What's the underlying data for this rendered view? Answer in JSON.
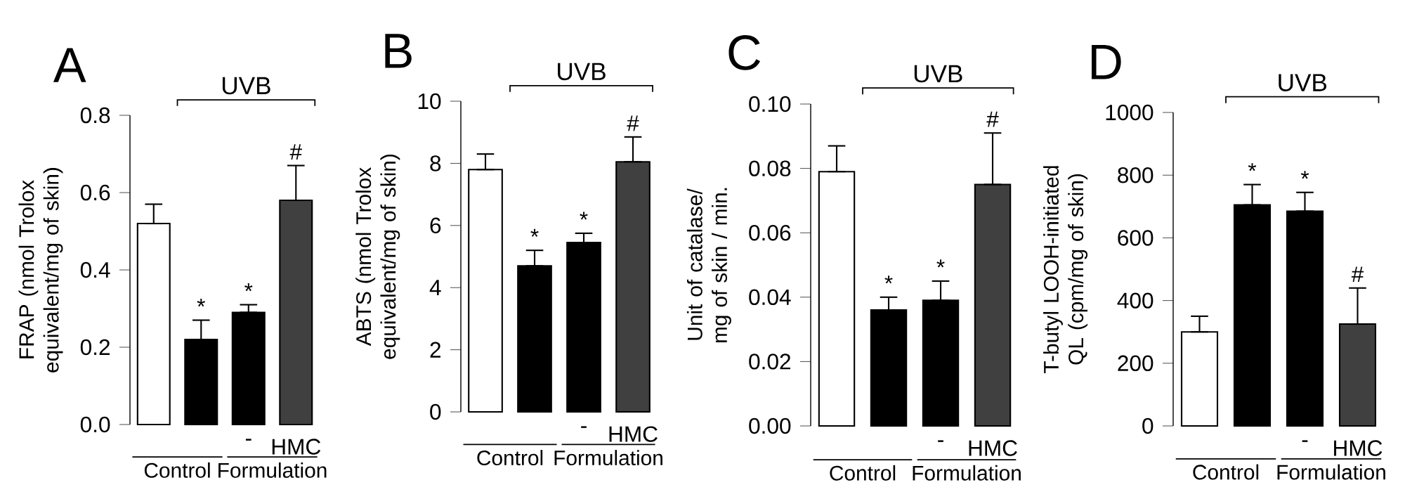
{
  "chart_data": [
    {
      "type": "bar",
      "title": "A",
      "ylabel": "FRAP (nmol Trolox equivalent/mg of skin)",
      "categories": [
        null,
        null,
        "-",
        "HMC"
      ],
      "values": [
        0.52,
        0.22,
        0.29,
        0.58
      ],
      "errors": [
        [
          0.52,
          0.57
        ],
        [
          0.22,
          0.27
        ],
        [
          0.29,
          0.31
        ],
        [
          0.58,
          0.67
        ]
      ],
      "colors": [
        "#ffffff",
        "#000000",
        "#000000",
        "#404040"
      ],
      "value_labels": [
        null,
        "*",
        "*",
        "#"
      ],
      "ylim": [
        0,
        0.8
      ],
      "yticks": [
        {
          "value": 0,
          "label": "0.0"
        },
        0.2,
        0.4,
        0.6,
        0.8
      ],
      "annotations": [
        "UVB",
        "Control",
        "Formulation"
      ]
    },
    {
      "type": "bar",
      "title": "B",
      "ylabel": "ABTS (nmol Trolox equivalent/mg of skin)",
      "categories": [
        null,
        null,
        "-",
        "HMC"
      ],
      "values": [
        7.8,
        4.7,
        5.45,
        8.05
      ],
      "errors": [
        [
          7.8,
          8.3
        ],
        [
          4.7,
          5.2
        ],
        [
          5.45,
          5.75
        ],
        [
          8.05,
          8.85
        ]
      ],
      "colors": [
        "#ffffff",
        "#000000",
        "#000000",
        "#404040"
      ],
      "value_labels": [
        null,
        "*",
        "*",
        "#"
      ],
      "ylim": [
        0,
        10
      ],
      "yticks": [
        0,
        2,
        4,
        6,
        8,
        10
      ],
      "annotations": [
        "UVB",
        "Control",
        "Formulation"
      ]
    },
    {
      "type": "bar",
      "title": "C",
      "ylabel": "Unit of catalase/ mg of skin / min.",
      "categories": [
        null,
        null,
        "-",
        "HMC"
      ],
      "values": [
        0.079,
        0.036,
        0.039,
        0.075
      ],
      "errors": [
        [
          0.079,
          0.087
        ],
        [
          0.036,
          0.04
        ],
        [
          0.039,
          0.045
        ],
        [
          0.075,
          0.091
        ]
      ],
      "colors": [
        "#ffffff",
        "#000000",
        "#000000",
        "#404040"
      ],
      "value_labels": [
        null,
        "*",
        "*",
        "#"
      ],
      "ylim": [
        0,
        0.1
      ],
      "yticks": [
        {
          "value": 0,
          "label": "0.00"
        },
        {
          "value": 0.02,
          "label": "0.02"
        },
        {
          "value": 0.04,
          "label": "0.04"
        },
        {
          "value": 0.06,
          "label": "0.06"
        },
        {
          "value": 0.08,
          "label": "0.08"
        },
        {
          "value": 0.1,
          "label": "0.10"
        }
      ],
      "annotations": [
        "UVB",
        "Control",
        "Formulation"
      ]
    },
    {
      "type": "bar",
      "title": "D",
      "ylabel": "T-butyl LOOH-initiated QL (cpm/mg of skin)",
      "categories": [
        null,
        null,
        "-",
        "HMC"
      ],
      "values": [
        300,
        705,
        685,
        325
      ],
      "errors": [
        [
          300,
          350
        ],
        [
          705,
          770
        ],
        [
          685,
          745
        ],
        [
          325,
          440
        ]
      ],
      "colors": [
        "#ffffff",
        "#000000",
        "#000000",
        "#404040"
      ],
      "value_labels": [
        null,
        "*",
        "*",
        "#"
      ],
      "ylim": [
        0,
        1000
      ],
      "yticks": [
        0,
        200,
        400,
        600,
        800,
        1000
      ],
      "annotations": [
        "UVB",
        "Control",
        "Formulation"
      ]
    }
  ]
}
